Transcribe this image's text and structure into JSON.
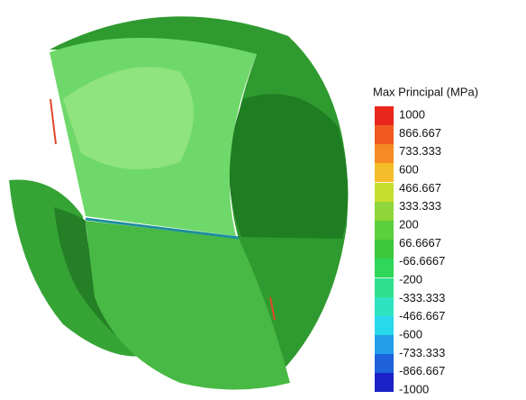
{
  "legend": {
    "title": "Max Principal (MPa)",
    "labels": [
      "1000",
      "866.667",
      "733.333",
      "600",
      "466.667",
      "333.333",
      "200",
      "66.6667",
      "-66.6667",
      "-200",
      "-333.333",
      "-466.667",
      "-600",
      "-733.333",
      "-866.667",
      "-1000"
    ]
  }
}
